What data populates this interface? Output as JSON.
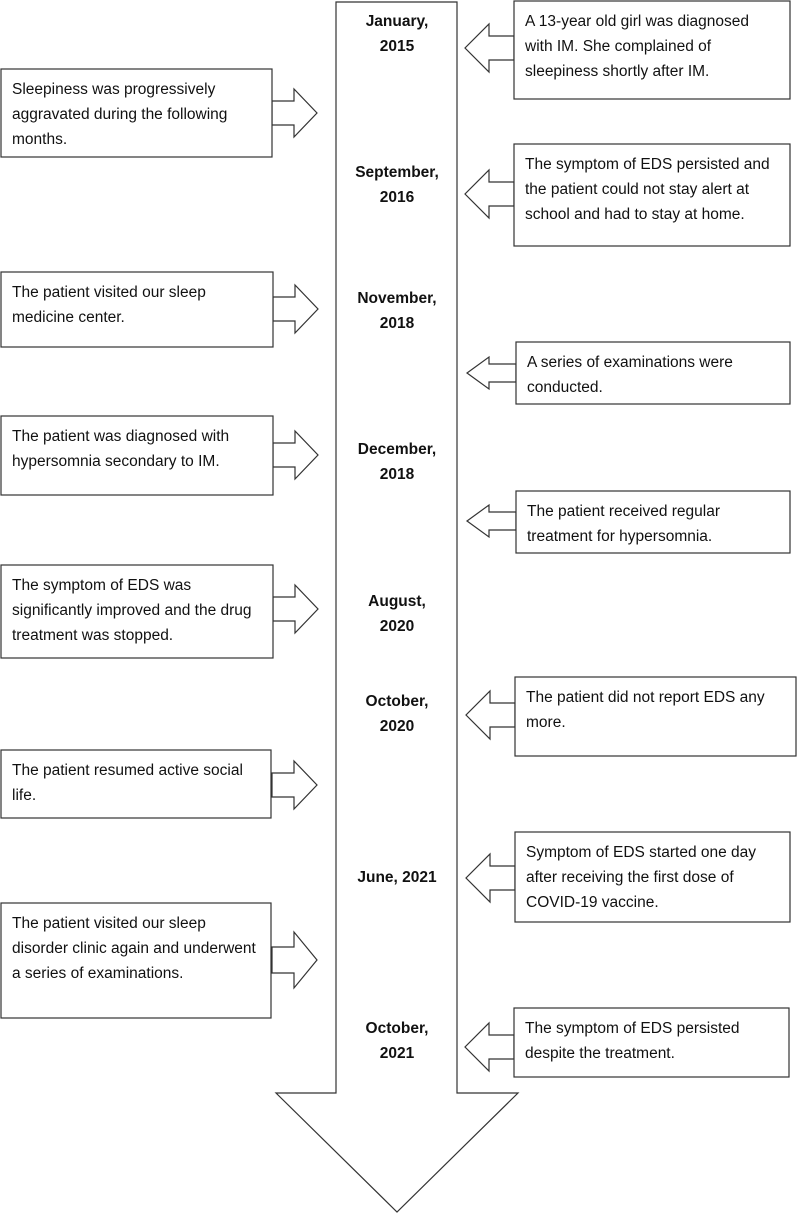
{
  "colors": {
    "stroke": "#333333",
    "fill": "#ffffff",
    "text": "#111111"
  },
  "dates": [
    {
      "line1": "January,",
      "line2": "2015"
    },
    {
      "line1": "September,",
      "line2": "2016"
    },
    {
      "line1": "November,",
      "line2": "2018"
    },
    {
      "line1": "December,",
      "line2": "2018"
    },
    {
      "line1": "August,",
      "line2": "2020"
    },
    {
      "line1": "October,",
      "line2": "2020"
    },
    {
      "line1": "June, 2021",
      "line2": ""
    },
    {
      "line1": "October,",
      "line2": "2021"
    }
  ],
  "left_events": [
    "Sleepiness was progressively aggravated during the following months.",
    "The patient visited our sleep medicine center.",
    "The patient was diagnosed with hypersomnia secondary to IM.",
    "The symptom of EDS was significantly improved and the drug treatment was stopped.",
    "The patient resumed active social life.",
    "The patient visited our sleep disorder clinic again and underwent a series of examinations."
  ],
  "right_events": [
    "A 13-year old girl was diagnosed with IM. She complained of sleepiness shortly after IM.",
    "The symptom of EDS persisted and the patient could not stay alert at school and had to stay at home.",
    "A series of examinations were conducted.",
    "The patient received regular treatment for hypersomnia.",
    "The patient did not report EDS any more.",
    "Symptom of EDS started one day after receiving the first dose of COVID-19 vaccine.",
    "The symptom of EDS persisted despite the treatment."
  ]
}
